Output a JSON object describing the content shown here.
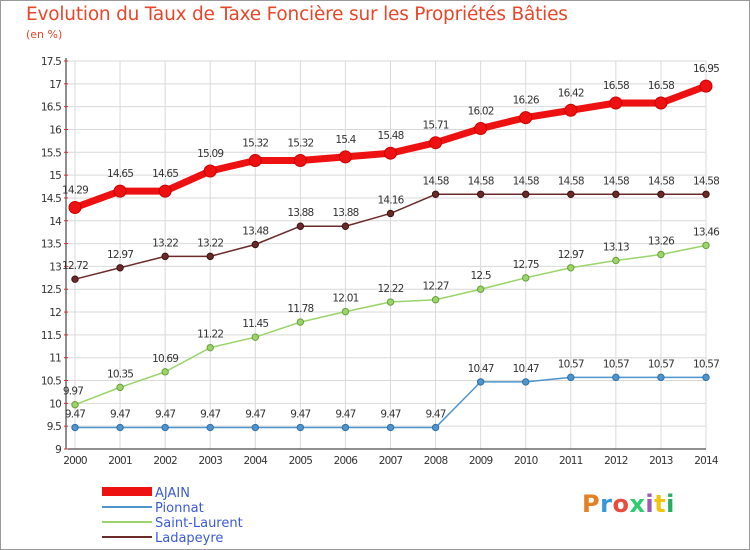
{
  "header": {
    "title": "Evolution du Taux de Taxe Foncière sur les Propriétés Bâties",
    "unit": "(en %)"
  },
  "logo": {
    "text": "Proxiti",
    "colors": [
      "#e67e22",
      "#3498db",
      "#e74c3c",
      "#2ecc71",
      "#9b59b6",
      "#f1c40f",
      "#27ae60"
    ]
  },
  "chart_data": {
    "type": "line",
    "title": "Evolution du Taux de Taxe Foncière sur les Propriétés Bâties",
    "ylabel": "(en %)",
    "xlabel": "",
    "ylim": [
      9,
      17.5
    ],
    "y_ticks": [
      "9",
      "9.5",
      "10",
      "10.5",
      "11",
      "11.5",
      "12",
      "12.5",
      "13",
      "13.5",
      "14",
      "14.5",
      "15",
      "15.5",
      "16",
      "16.5",
      "17",
      "17.5"
    ],
    "x": [
      "2000",
      "2001",
      "2002",
      "2003",
      "2004",
      "2005",
      "2006",
      "2007",
      "2008",
      "2009",
      "2010",
      "2011",
      "2012",
      "2013",
      "2014"
    ],
    "grid": true,
    "legend_position": "bottom-left",
    "series": [
      {
        "name": "AJAIN",
        "color": "#ee1111",
        "values": [
          14.29,
          14.65,
          14.65,
          15.09,
          15.32,
          15.32,
          15.4,
          15.48,
          15.71,
          16.02,
          16.26,
          16.42,
          16.58,
          16.58,
          16.95
        ],
        "labels": [
          "14.29",
          "14.65",
          "14.65",
          "15.09",
          "15.32",
          "15.32",
          "15.4",
          "15.48",
          "15.71",
          "16.02",
          "16.26",
          "16.42",
          "16.58",
          "16.58",
          "16.95"
        ]
      },
      {
        "name": "Pionnat",
        "color": "#4f94cd",
        "values": [
          9.47,
          9.47,
          9.47,
          9.47,
          9.47,
          9.47,
          9.47,
          9.47,
          9.47,
          10.47,
          10.47,
          10.57,
          10.57,
          10.57,
          10.57
        ],
        "labels": [
          "9.47",
          "9.47",
          "9.47",
          "9.47",
          "9.47",
          "9.47",
          "9.47",
          "9.47",
          "9.47",
          "10.47",
          "10.47",
          "10.57",
          "10.57",
          "10.57",
          "10.57"
        ]
      },
      {
        "name": "Saint-Laurent",
        "color": "#9ad46a",
        "values": [
          9.97,
          10.35,
          10.69,
          11.22,
          11.45,
          11.78,
          12.01,
          12.22,
          12.27,
          12.5,
          12.75,
          12.97,
          13.13,
          13.26,
          13.46
        ],
        "labels": [
          "9.97",
          "10.35",
          "10.69",
          "11.22",
          "11.45",
          "11.78",
          "12.01",
          "12.22",
          "12.27",
          "12.5",
          "12.75",
          "12.97",
          "13.13",
          "13.26",
          "13.46"
        ]
      },
      {
        "name": "Ladapeyre",
        "color": "#6b2a2a",
        "values": [
          12.72,
          12.97,
          13.22,
          13.22,
          13.48,
          13.88,
          13.88,
          14.16,
          14.58,
          14.58,
          14.58,
          14.58,
          14.58,
          14.58,
          14.58
        ],
        "labels": [
          "12.72",
          "12.97",
          "13.22",
          "13.22",
          "13.48",
          "13.88",
          "13.88",
          "14.16",
          "14.58",
          "14.58",
          "14.58",
          "14.58",
          "14.58",
          "14.58",
          "14.58"
        ]
      }
    ]
  }
}
